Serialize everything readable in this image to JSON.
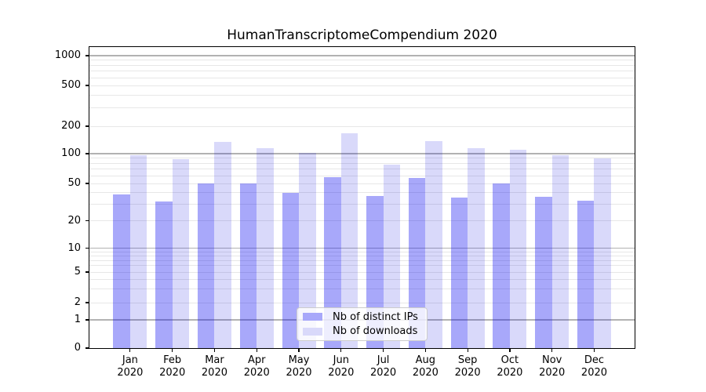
{
  "chart_data": {
    "type": "bar",
    "title": "HumanTranscriptomeCompendium 2020",
    "categories": [
      "Jan 2020",
      "Feb 2020",
      "Mar 2020",
      "Apr 2020",
      "May 2020",
      "Jun 2020",
      "Jul 2020",
      "Aug 2020",
      "Sep 2020",
      "Oct 2020",
      "Nov 2020",
      "Dec 2020"
    ],
    "series": [
      {
        "name": "Nb of distinct IPs",
        "color": "#a8a8fa",
        "values": [
          38,
          32,
          50,
          50,
          40,
          58,
          37,
          57,
          35,
          50,
          36,
          33
        ]
      },
      {
        "name": "Nb of downloads",
        "color": "#d9d9fa",
        "values": [
          96,
          88,
          135,
          115,
          102,
          167,
          78,
          137,
          115,
          110,
          97,
          90
        ]
      }
    ],
    "xlabel": "",
    "ylabel": "",
    "y_scale": "symlog",
    "ylim": [
      0,
      1250
    ],
    "y_tick_labels": [
      "1000",
      "500",
      "200",
      "100",
      "50",
      "20",
      "10",
      "5",
      "2",
      "1",
      "0"
    ],
    "grid": true,
    "legend_position": "lower center"
  },
  "colors": {
    "major_gridline": "#b2b2b2",
    "minor_gridline": "#e7e7e7",
    "axis": "#000000",
    "legend_border": "#cccccc"
  }
}
